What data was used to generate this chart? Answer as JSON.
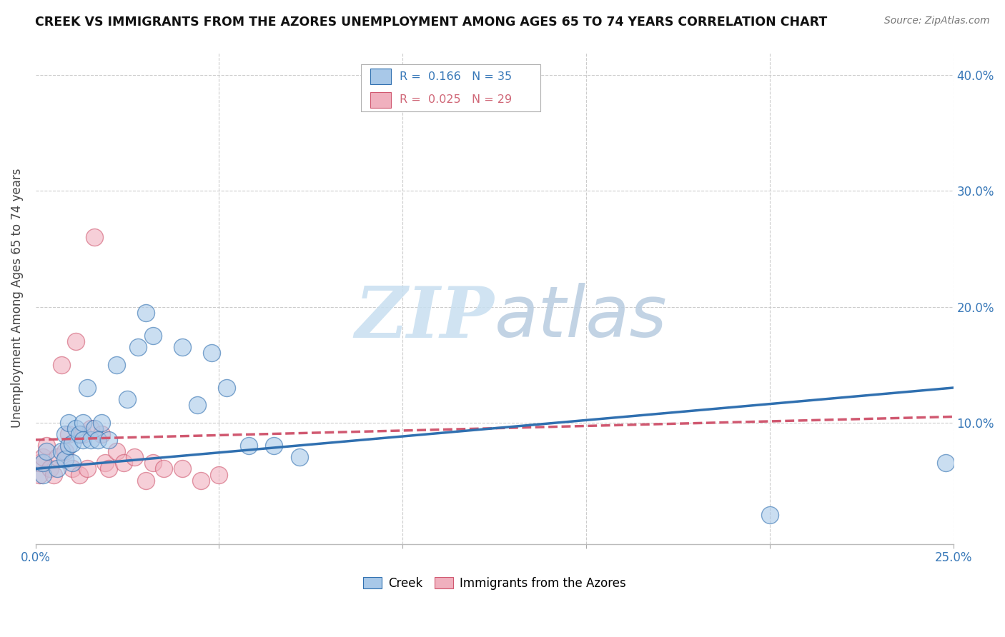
{
  "title": "CREEK VS IMMIGRANTS FROM THE AZORES UNEMPLOYMENT AMONG AGES 65 TO 74 YEARS CORRELATION CHART",
  "source": "Source: ZipAtlas.com",
  "ylabel": "Unemployment Among Ages 65 to 74 years",
  "xlim": [
    0.0,
    0.25
  ],
  "ylim": [
    -0.005,
    0.42
  ],
  "xticks": [
    0.0,
    0.05,
    0.1,
    0.15,
    0.2,
    0.25
  ],
  "yticks": [
    0.0,
    0.1,
    0.2,
    0.3,
    0.4
  ],
  "creek_R": 0.166,
  "creek_N": 35,
  "azores_R": 0.025,
  "azores_N": 29,
  "blue_color": "#a8c8e8",
  "pink_color": "#f0b0be",
  "blue_line_color": "#3070b0",
  "pink_line_color": "#d05870",
  "blue_text_color": "#3878b8",
  "pink_text_color": "#d06878",
  "creek_scatter_x": [
    0.002,
    0.002,
    0.003,
    0.006,
    0.007,
    0.008,
    0.008,
    0.009,
    0.009,
    0.01,
    0.01,
    0.011,
    0.012,
    0.013,
    0.013,
    0.014,
    0.015,
    0.016,
    0.017,
    0.018,
    0.02,
    0.022,
    0.025,
    0.028,
    0.03,
    0.032,
    0.04,
    0.044,
    0.048,
    0.052,
    0.058,
    0.065,
    0.072,
    0.2,
    0.248
  ],
  "creek_scatter_y": [
    0.055,
    0.065,
    0.075,
    0.06,
    0.075,
    0.068,
    0.09,
    0.1,
    0.08,
    0.065,
    0.082,
    0.095,
    0.09,
    0.085,
    0.1,
    0.13,
    0.085,
    0.095,
    0.085,
    0.1,
    0.085,
    0.15,
    0.12,
    0.165,
    0.195,
    0.175,
    0.165,
    0.115,
    0.16,
    0.13,
    0.08,
    0.08,
    0.07,
    0.02,
    0.065
  ],
  "azores_scatter_x": [
    0.001,
    0.001,
    0.002,
    0.003,
    0.004,
    0.005,
    0.006,
    0.007,
    0.008,
    0.009,
    0.01,
    0.011,
    0.012,
    0.013,
    0.014,
    0.015,
    0.016,
    0.018,
    0.019,
    0.02,
    0.022,
    0.024,
    0.027,
    0.03,
    0.032,
    0.035,
    0.04,
    0.045,
    0.05
  ],
  "azores_scatter_y": [
    0.055,
    0.065,
    0.07,
    0.08,
    0.06,
    0.055,
    0.07,
    0.15,
    0.075,
    0.09,
    0.06,
    0.17,
    0.055,
    0.09,
    0.06,
    0.095,
    0.26,
    0.09,
    0.065,
    0.06,
    0.075,
    0.065,
    0.07,
    0.05,
    0.065,
    0.06,
    0.06,
    0.05,
    0.055
  ],
  "creek_line_x0": 0.0,
  "creek_line_x1": 0.25,
  "creek_line_y0": 0.06,
  "creek_line_y1": 0.13,
  "azores_line_x0": 0.0,
  "azores_line_x1": 0.25,
  "azores_line_y0": 0.085,
  "azores_line_y1": 0.105,
  "watermark_zip": "ZIP",
  "watermark_atlas": "atlas",
  "background_color": "#ffffff",
  "grid_color": "#cccccc"
}
